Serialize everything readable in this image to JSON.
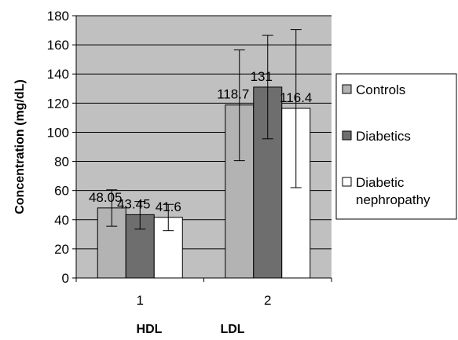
{
  "chart_data": {
    "type": "bar",
    "title": "",
    "xlabel": "",
    "ylabel": "Concentration (mg/dL)",
    "ylim": [
      0,
      180
    ],
    "ytick_step": 20,
    "grid": true,
    "legend_position": "right",
    "categories": [
      "1",
      "2"
    ],
    "category_group_labels": [
      "HDL",
      "LDL"
    ],
    "series": [
      {
        "name": "Controls",
        "values": [
          48.05,
          118.7
        ],
        "labels": [
          "48.05",
          "118.7"
        ],
        "err_low": [
          35.5,
          80.5
        ],
        "err_high": [
          60.5,
          156.5
        ],
        "color": "#b3b3b3"
      },
      {
        "name": "Diabetics",
        "values": [
          43.45,
          131
        ],
        "labels": [
          "43.45",
          "131"
        ],
        "err_low": [
          33.5,
          95.5
        ],
        "err_high": [
          52.5,
          166.5
        ],
        "color": "#6e6e6e"
      },
      {
        "name": "Diabetic nephropathy",
        "legend_lines": [
          "Diabetic",
          "nephropathy"
        ],
        "values": [
          41.6,
          116.4
        ],
        "labels": [
          "41.6",
          "116.4"
        ],
        "err_low": [
          32.5,
          62.0
        ],
        "err_high": [
          50.5,
          170.5
        ],
        "color": "#ffffff"
      }
    ],
    "plot_background": "#c0c0c0"
  }
}
